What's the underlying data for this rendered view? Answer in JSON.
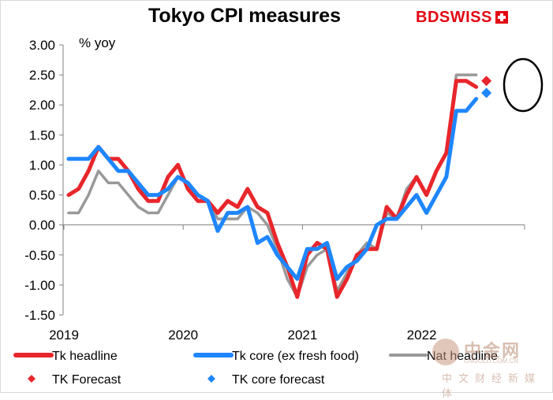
{
  "chart_data": {
    "type": "line",
    "title": "Tokyo CPI measures",
    "ylabel": "% yoy",
    "ylim": [
      -1.5,
      3.0
    ],
    "yticks": [
      "3.00",
      "2.50",
      "2.00",
      "1.50",
      "1.00",
      "0.50",
      "0.00",
      "-0.50",
      "-1.00",
      "-1.50"
    ],
    "ytick_values": [
      3.0,
      2.5,
      2.0,
      1.5,
      1.0,
      0.5,
      0.0,
      -0.5,
      -1.0,
      -1.5
    ],
    "year_labels": [
      "2019",
      "2020",
      "2021",
      "2022"
    ],
    "x_months": [
      "2019-01",
      "2019-02",
      "2019-03",
      "2019-04",
      "2019-05",
      "2019-06",
      "2019-07",
      "2019-08",
      "2019-09",
      "2019-10",
      "2019-11",
      "2019-12",
      "2020-01",
      "2020-02",
      "2020-03",
      "2020-04",
      "2020-05",
      "2020-06",
      "2020-07",
      "2020-08",
      "2020-09",
      "2020-10",
      "2020-11",
      "2020-12",
      "2021-01",
      "2021-02",
      "2021-03",
      "2021-04",
      "2021-05",
      "2021-06",
      "2021-07",
      "2021-08",
      "2021-09",
      "2021-10",
      "2021-11",
      "2021-12",
      "2022-01",
      "2022-02",
      "2022-03",
      "2022-04",
      "2022-05",
      "2022-06"
    ],
    "series": [
      {
        "name": "Tk headline",
        "color": "#e8262b",
        "values": [
          0.5,
          0.6,
          0.9,
          1.3,
          1.1,
          1.1,
          0.9,
          0.6,
          0.4,
          0.4,
          0.8,
          1.0,
          0.6,
          0.4,
          0.4,
          0.2,
          0.4,
          0.3,
          0.6,
          0.3,
          0.2,
          -0.3,
          -0.7,
          -1.2,
          -0.5,
          -0.3,
          -0.4,
          -1.2,
          -0.9,
          -0.5,
          -0.4,
          -0.4,
          0.3,
          0.1,
          0.5,
          0.8,
          0.5,
          0.9,
          1.2,
          2.4,
          2.4,
          2.3
        ]
      },
      {
        "name": "Tk core (ex fresh food)",
        "color": "#1e86ff",
        "values": [
          1.1,
          1.1,
          1.1,
          1.3,
          1.1,
          0.9,
          0.9,
          0.7,
          0.5,
          0.5,
          0.6,
          0.8,
          0.7,
          0.5,
          0.4,
          -0.1,
          0.2,
          0.2,
          0.3,
          -0.3,
          -0.2,
          -0.5,
          -0.7,
          -0.9,
          -0.4,
          -0.4,
          -0.3,
          -0.9,
          -0.7,
          -0.6,
          -0.4,
          0.0,
          0.1,
          0.1,
          0.3,
          0.5,
          0.2,
          0.5,
          0.8,
          1.9,
          1.9,
          2.1
        ]
      },
      {
        "name": "Nat headline",
        "color": "#999999",
        "values": [
          0.2,
          0.2,
          0.5,
          0.9,
          0.7,
          0.7,
          0.5,
          0.3,
          0.2,
          0.2,
          0.5,
          0.8,
          0.7,
          0.4,
          0.4,
          0.1,
          0.1,
          0.1,
          0.3,
          0.2,
          0.0,
          -0.4,
          -0.9,
          -1.2,
          -0.7,
          -0.5,
          -0.4,
          -1.1,
          -0.8,
          -0.5,
          -0.3,
          -0.4,
          0.2,
          0.1,
          0.6,
          0.8,
          0.5,
          0.9,
          1.2,
          2.5,
          2.5,
          2.5
        ]
      }
    ],
    "forecasts": [
      {
        "name": "TK Forecast",
        "color": "#e8262b",
        "month": "2022-06",
        "value": 2.4
      },
      {
        "name": "TK core forecast",
        "color": "#1e86ff",
        "month": "2022-06",
        "value": 2.2
      }
    ],
    "annotation": "circle around June 2022 forecast markers",
    "legend": [
      {
        "label": "Tk headline",
        "kind": "line",
        "color": "#e8262b"
      },
      {
        "label": "Tk core (ex fresh food)",
        "kind": "line",
        "color": "#1e86ff"
      },
      {
        "label": "Nat headline",
        "kind": "line",
        "color": "#999999"
      },
      {
        "label": "TK Forecast",
        "kind": "diamond",
        "color": "#e8262b"
      },
      {
        "label": "TK core forecast",
        "kind": "diamond",
        "color": "#1e86ff"
      }
    ],
    "legend_position": "bottom"
  },
  "brand": {
    "logo_text": "BDSWISS"
  },
  "watermark": {
    "main": "中金网",
    "sub": "CNGOLD.COM.CN",
    "cn": "中文财经新媒体"
  }
}
